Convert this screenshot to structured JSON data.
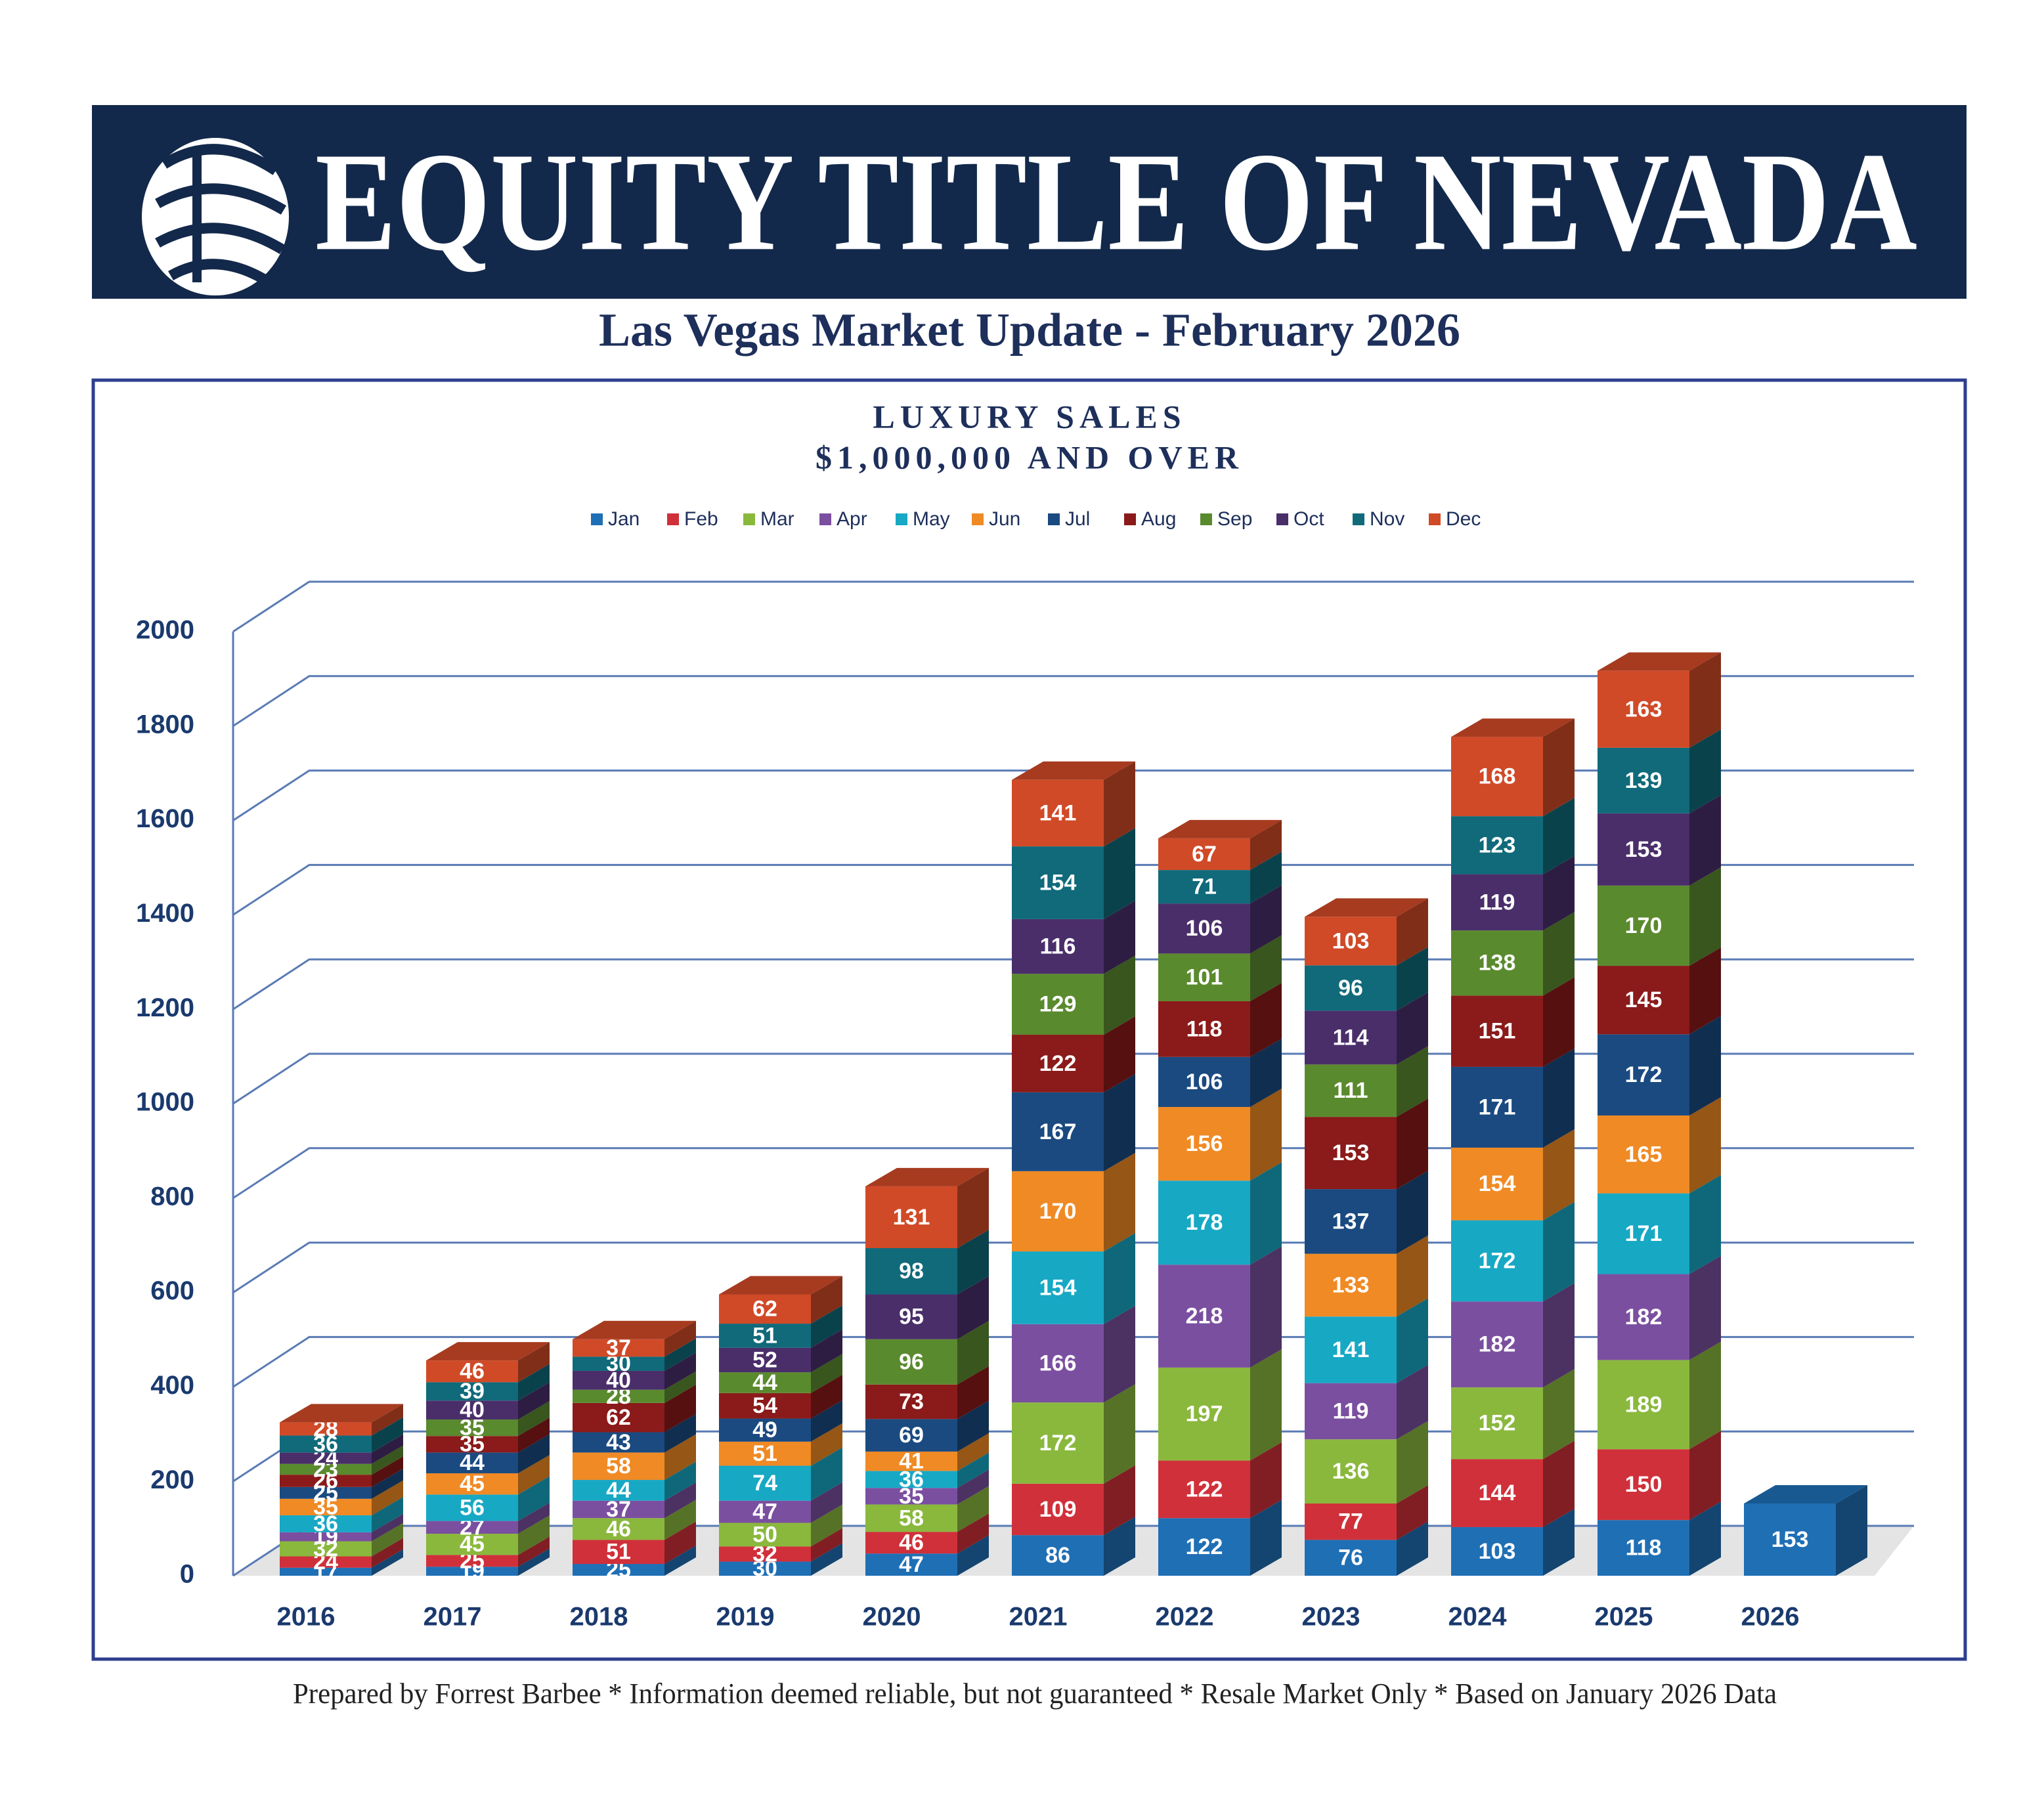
{
  "header": {
    "brand": "EQUITY TITLE OF NEVADA",
    "subtitle": "Las Vegas Market Update - February 2026"
  },
  "chart_data": {
    "type": "bar",
    "stacked": true,
    "title": "LUXURY SALES",
    "subtitle": "$1,000,000 AND OVER",
    "categories": [
      "2016",
      "2017",
      "2018",
      "2019",
      "2020",
      "2021",
      "2022",
      "2023",
      "2024",
      "2025",
      "2026"
    ],
    "series": [
      {
        "name": "Jan",
        "color": "#1f6fb5",
        "values": [
          17,
          19,
          25,
          30,
          47,
          86,
          122,
          76,
          103,
          118,
          153
        ]
      },
      {
        "name": "Feb",
        "color": "#d0303a",
        "values": [
          24,
          25,
          51,
          32,
          46,
          109,
          122,
          77,
          144,
          150,
          null
        ]
      },
      {
        "name": "Mar",
        "color": "#8ab83d",
        "values": [
          32,
          45,
          46,
          50,
          58,
          172,
          197,
          136,
          152,
          189,
          null
        ]
      },
      {
        "name": "Apr",
        "color": "#7b4fa0",
        "values": [
          19,
          27,
          37,
          47,
          35,
          166,
          218,
          119,
          182,
          182,
          null
        ]
      },
      {
        "name": "May",
        "color": "#17a8c4",
        "values": [
          36,
          56,
          44,
          74,
          36,
          154,
          178,
          141,
          172,
          171,
          null
        ]
      },
      {
        "name": "Jun",
        "color": "#f08a24",
        "values": [
          35,
          45,
          58,
          51,
          41,
          170,
          156,
          133,
          154,
          165,
          null
        ]
      },
      {
        "name": "Jul",
        "color": "#1a4a80",
        "values": [
          25,
          44,
          43,
          49,
          69,
          167,
          106,
          137,
          171,
          172,
          null
        ]
      },
      {
        "name": "Aug",
        "color": "#8b1a1a",
        "values": [
          26,
          35,
          62,
          54,
          73,
          122,
          118,
          153,
          151,
          145,
          null
        ]
      },
      {
        "name": "Sep",
        "color": "#5a8a2e",
        "values": [
          23,
          35,
          28,
          44,
          96,
          129,
          101,
          111,
          138,
          170,
          null
        ]
      },
      {
        "name": "Oct",
        "color": "#4a2e6a",
        "values": [
          24,
          40,
          40,
          52,
          95,
          116,
          106,
          114,
          119,
          153,
          null
        ]
      },
      {
        "name": "Nov",
        "color": "#106a7a",
        "values": [
          36,
          39,
          30,
          51,
          98,
          154,
          71,
          96,
          123,
          139,
          null
        ]
      },
      {
        "name": "Dec",
        "color": "#d04a28",
        "values": [
          28,
          46,
          37,
          62,
          131,
          141,
          67,
          103,
          168,
          163,
          null
        ]
      }
    ],
    "ylim": [
      0,
      2000
    ],
    "yticks": [
      0,
      200,
      400,
      600,
      800,
      1000,
      1200,
      1400,
      1600,
      1800,
      2000
    ],
    "grid": true,
    "legend": "top"
  },
  "footer": "Prepared by Forrest Barbee * Information deemed reliable, but not guaranteed * Resale Market Only * Based on January 2026 Data"
}
